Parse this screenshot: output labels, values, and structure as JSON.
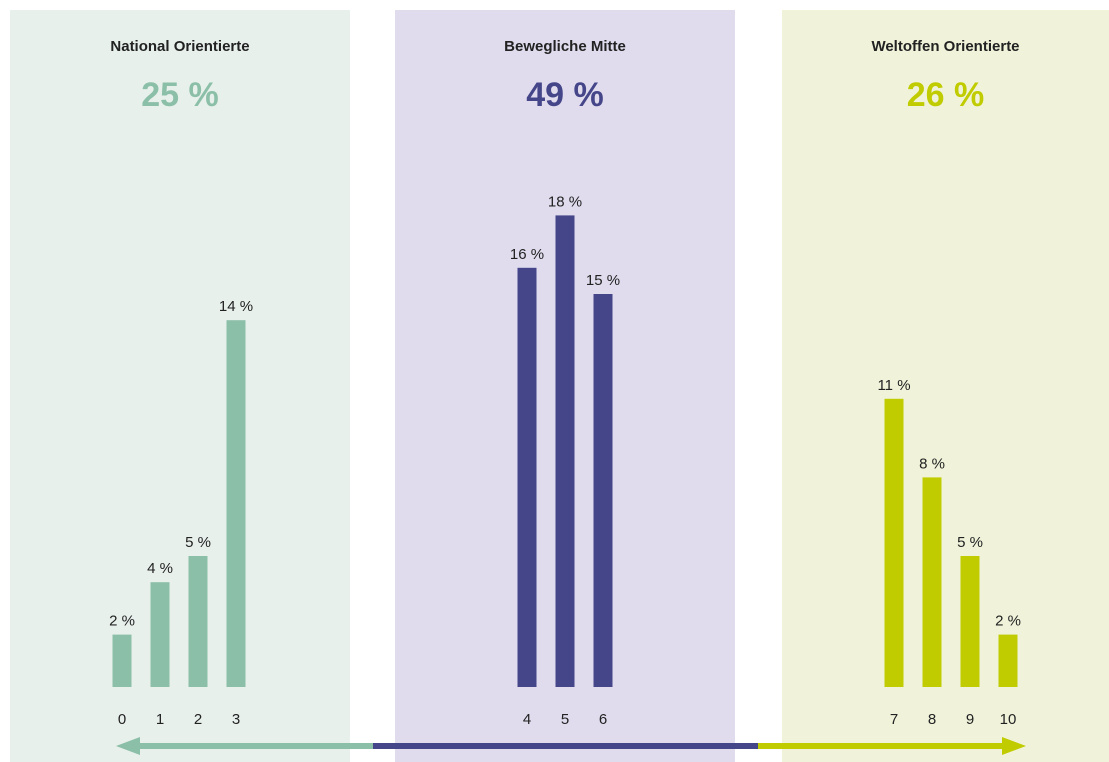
{
  "chart_data": {
    "type": "bar",
    "groups": [
      {
        "title": "National Orientierte",
        "total": 25,
        "total_label": "25 %",
        "color": "#8cbfa8",
        "background": "#e8f0ec",
        "categories": [
          "0",
          "1",
          "2",
          "3"
        ],
        "values": [
          2,
          4,
          5,
          14
        ],
        "value_labels": [
          "2 %",
          "4 %",
          "5 %",
          "14 %"
        ]
      },
      {
        "title": "Bewegliche Mitte",
        "total": 49,
        "total_label": "49 %",
        "color": "#454589",
        "background": "#e0dcee",
        "categories": [
          "4",
          "5",
          "6"
        ],
        "values": [
          16,
          18,
          15
        ],
        "value_labels": [
          "16 %",
          "18 %",
          "15 %"
        ]
      },
      {
        "title": "Weltoffen Orientierte",
        "total": 26,
        "total_label": "26 %",
        "color": "#c0cc00",
        "background": "#f0f3da",
        "categories": [
          "7",
          "8",
          "9",
          "10"
        ],
        "values": [
          11,
          8,
          5,
          2
        ],
        "value_labels": [
          "11 %",
          "8 %",
          "5 %",
          "2 %"
        ]
      }
    ]
  }
}
